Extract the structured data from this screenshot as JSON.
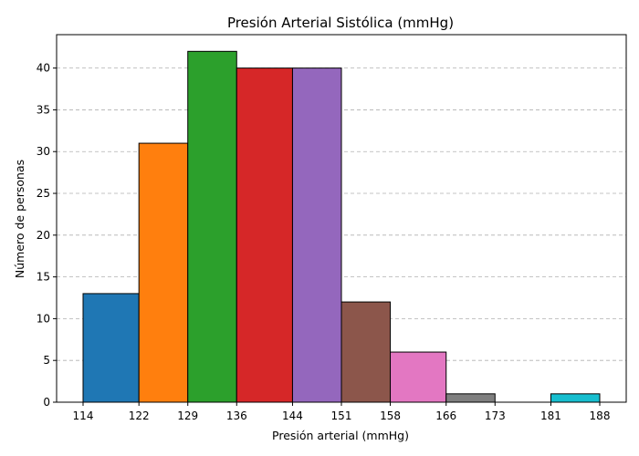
{
  "chart_data": {
    "type": "bar",
    "title": "Presión Arterial Sistólica (mmHg)",
    "xlabel": "Presión arterial (mmHg)",
    "ylabel": "Número de personas",
    "x_tick_labels": [
      "114",
      "122",
      "129",
      "136",
      "144",
      "151",
      "158",
      "166",
      "173",
      "181",
      "188"
    ],
    "y_ticks": [
      0,
      5,
      10,
      15,
      20,
      25,
      30,
      35,
      40
    ],
    "ylim": [
      0,
      44
    ],
    "grid": "y-dashed",
    "bins": [
      {
        "start": 114,
        "end": 122,
        "value": 13,
        "color": "#1f77b4"
      },
      {
        "start": 122,
        "end": 129,
        "value": 31,
        "color": "#ff7f0e"
      },
      {
        "start": 129,
        "end": 136,
        "value": 42,
        "color": "#2ca02c"
      },
      {
        "start": 136,
        "end": 144,
        "value": 40,
        "color": "#d62728"
      },
      {
        "start": 144,
        "end": 151,
        "value": 40,
        "color": "#9467bd"
      },
      {
        "start": 151,
        "end": 158,
        "value": 12,
        "color": "#8c564b"
      },
      {
        "start": 158,
        "end": 166,
        "value": 6,
        "color": "#e377c2"
      },
      {
        "start": 166,
        "end": 173,
        "value": 1,
        "color": "#7f7f7f"
      },
      {
        "start": 173,
        "end": 181,
        "value": 0,
        "color": "#bcbd22"
      },
      {
        "start": 181,
        "end": 188,
        "value": 1,
        "color": "#17becf"
      }
    ]
  }
}
